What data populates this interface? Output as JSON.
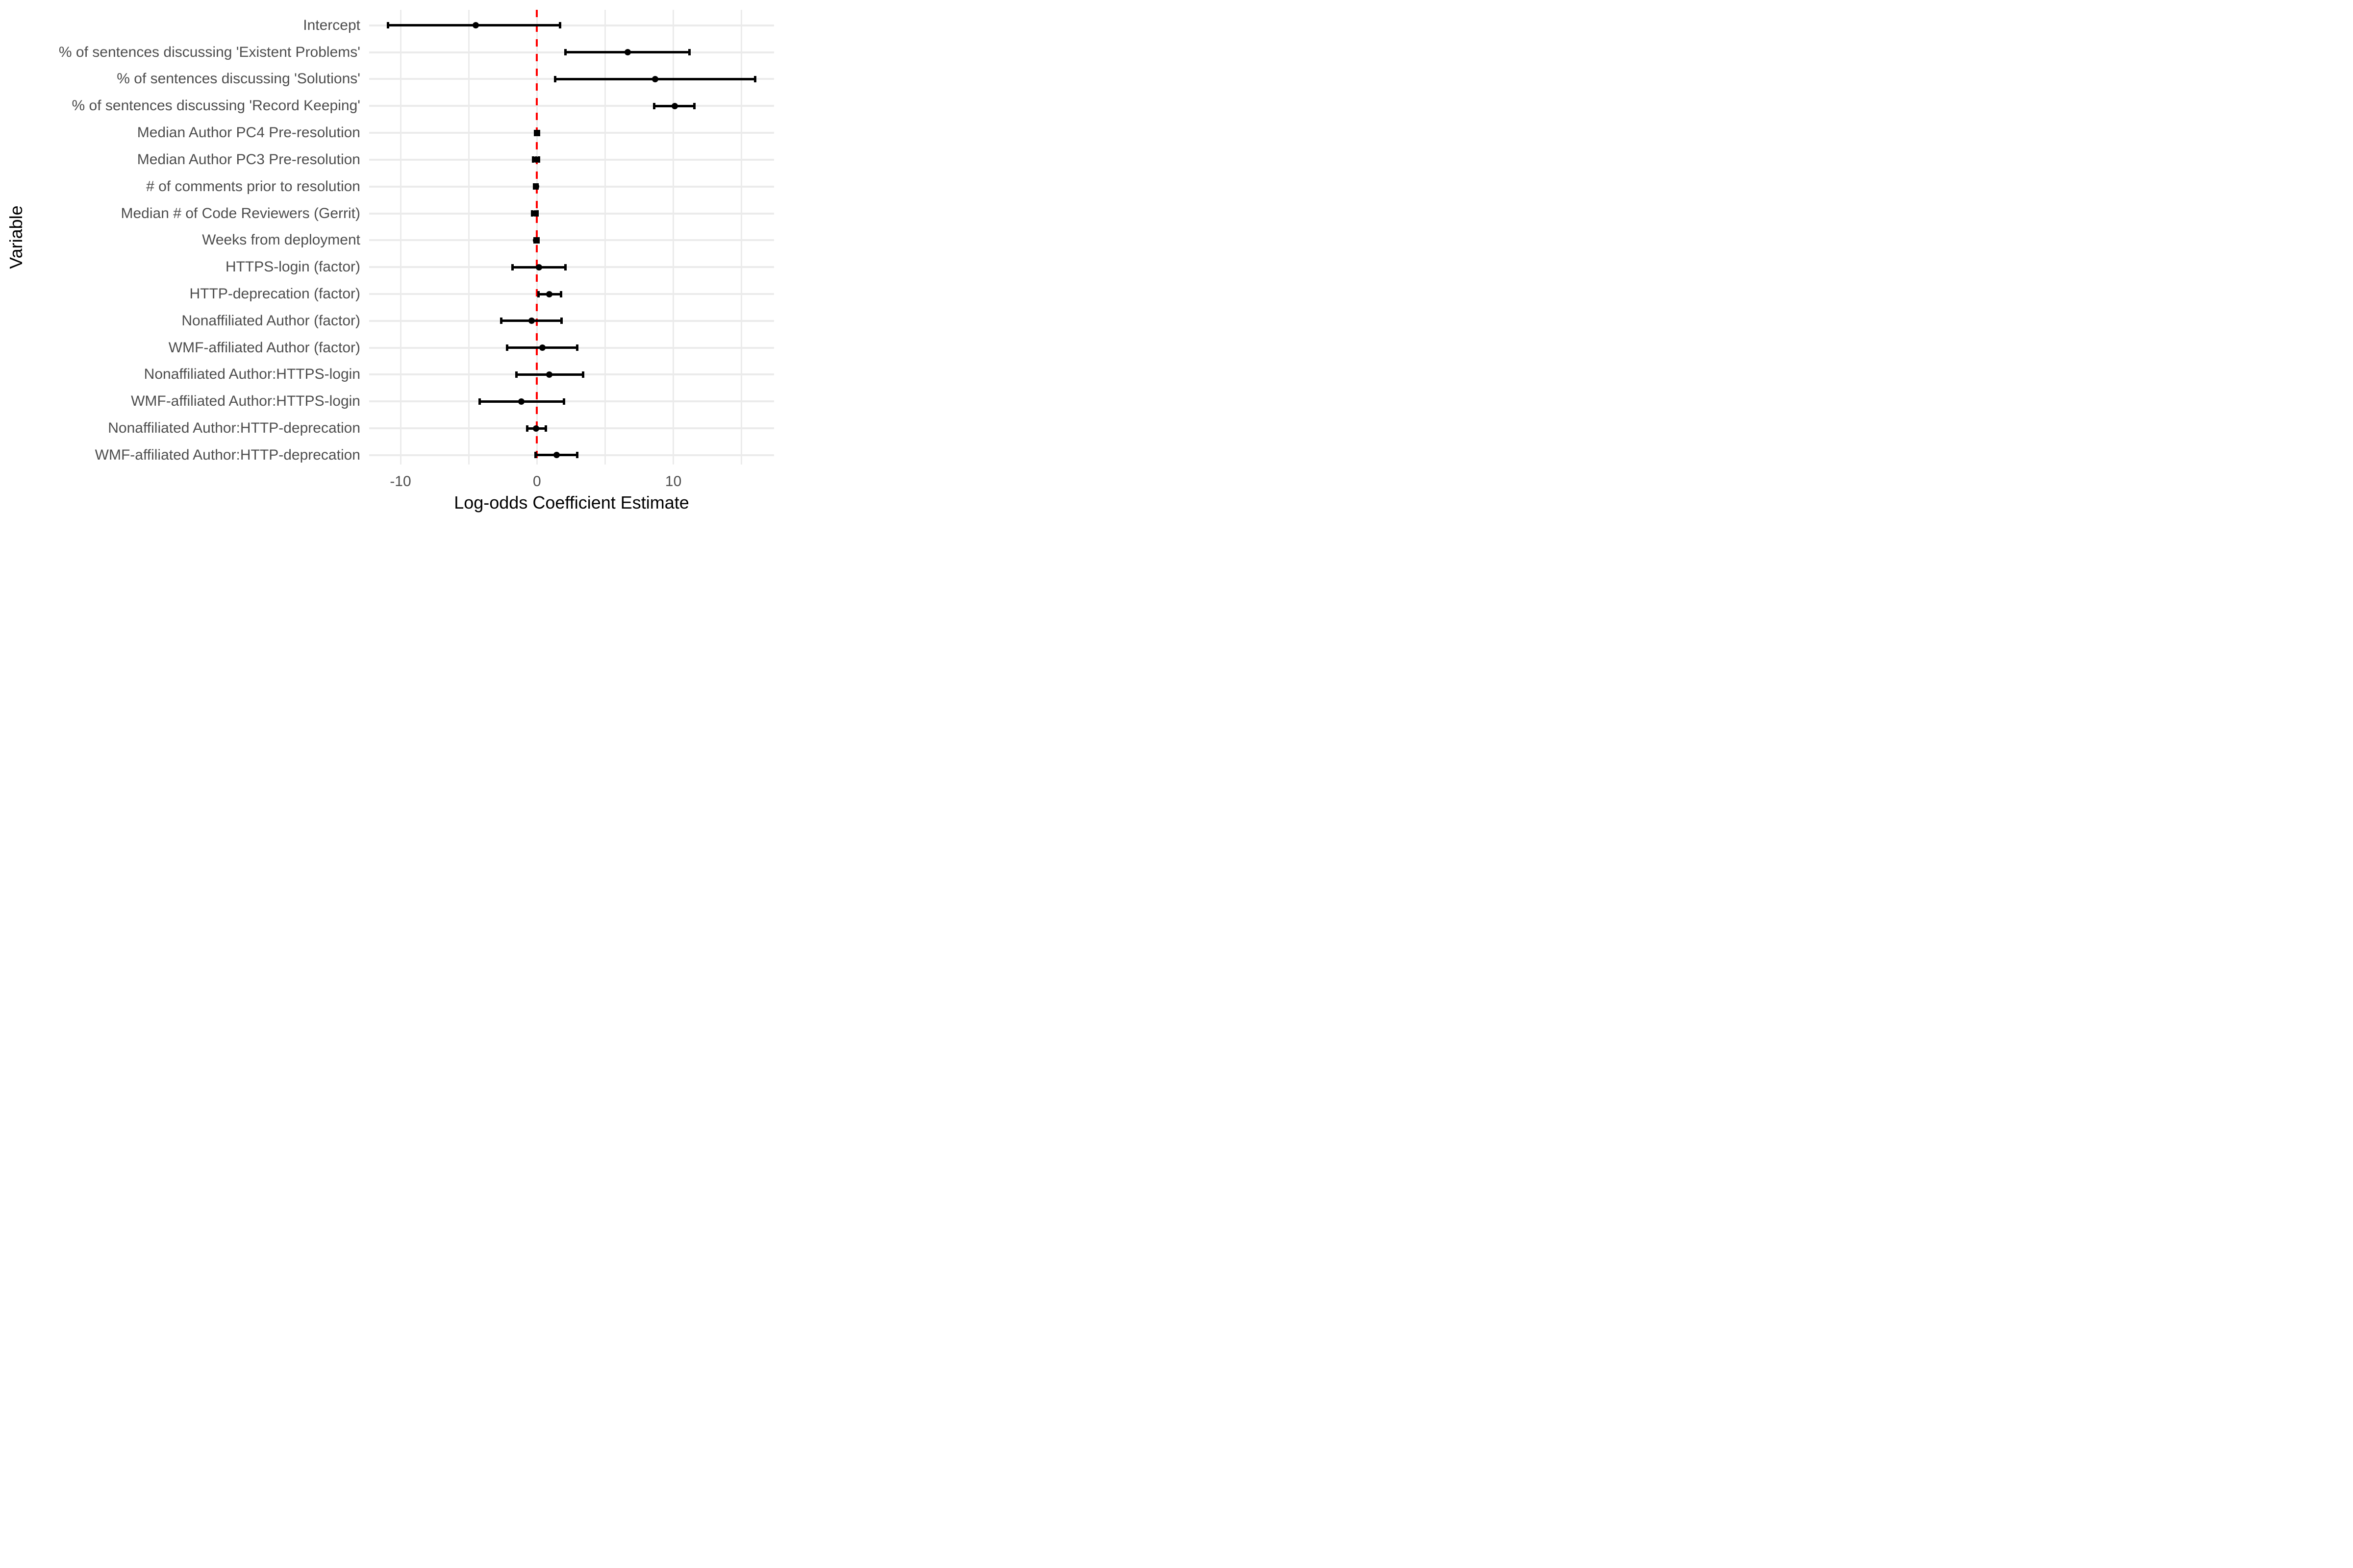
{
  "chart_data": {
    "type": "scatter",
    "subtype": "forest-plot-dot-and-whisker",
    "title": "",
    "xlabel": "Log-odds Coefficient Estimate",
    "ylabel": "Variable",
    "xlim": [
      -12.3,
      17.4
    ],
    "x_ticks": [
      -10,
      0,
      10
    ],
    "x_tick_labels": [
      "-10",
      "0",
      "10"
    ],
    "x_gridlines": [
      -10,
      -5,
      0,
      5,
      10,
      15
    ],
    "grid": true,
    "legend": "none",
    "reference_line": {
      "x": 0,
      "color": "#FF0000",
      "style": "dashed"
    },
    "rows": [
      {
        "label": "Intercept",
        "estimate": -4.5,
        "ci_low": -10.9,
        "ci_high": 1.7
      },
      {
        "label": "% of sentences discussing 'Existent Problems'",
        "estimate": 6.65,
        "ci_low": 2.1,
        "ci_high": 11.2
      },
      {
        "label": "% of sentences discussing 'Solutions'",
        "estimate": 8.65,
        "ci_low": 1.35,
        "ci_high": 16.0
      },
      {
        "label": "% of sentences discussing 'Record Keeping'",
        "estimate": 10.1,
        "ci_low": 8.6,
        "ci_high": 11.55
      },
      {
        "label": "Median Author PC4 Pre-resolution",
        "estimate": 0.0,
        "ci_low": -0.15,
        "ci_high": 0.15
      },
      {
        "label": "Median Author PC3 Pre-resolution",
        "estimate": -0.06,
        "ci_low": -0.28,
        "ci_high": 0.14
      },
      {
        "label": "# of comments prior to resolution",
        "estimate": -0.08,
        "ci_low": -0.2,
        "ci_high": 0.05
      },
      {
        "label": "Median # of Code Reviewers (Gerrit)",
        "estimate": -0.15,
        "ci_low": -0.34,
        "ci_high": 0.04
      },
      {
        "label": "Weeks from deployment",
        "estimate": -0.05,
        "ci_low": -0.18,
        "ci_high": 0.1
      },
      {
        "label": "HTTPS-login (factor)",
        "estimate": 0.15,
        "ci_low": -1.8,
        "ci_high": 2.1
      },
      {
        "label": "HTTP-deprecation (factor)",
        "estimate": 0.9,
        "ci_low": 0.1,
        "ci_high": 1.78
      },
      {
        "label": "Nonaffiliated Author (factor)",
        "estimate": -0.4,
        "ci_low": -2.6,
        "ci_high": 1.82
      },
      {
        "label": "WMF-affiliated Author (factor)",
        "estimate": 0.4,
        "ci_low": -2.2,
        "ci_high": 2.95
      },
      {
        "label": "Nonaffiliated Author:HTTPS-login",
        "estimate": 0.9,
        "ci_low": -1.5,
        "ci_high": 3.4
      },
      {
        "label": "WMF-affiliated Author:HTTPS-login",
        "estimate": -1.15,
        "ci_low": -4.2,
        "ci_high": 2.0
      },
      {
        "label": "Nonaffiliated Author:HTTP-deprecation",
        "estimate": -0.05,
        "ci_low": -0.7,
        "ci_high": 0.65
      },
      {
        "label": "WMF-affiliated Author:HTTP-deprecation",
        "estimate": 1.45,
        "ci_low": -0.1,
        "ci_high": 2.95
      }
    ]
  },
  "colors": {
    "background": "#FFFFFF",
    "gridline": "#EBEBEB",
    "point": "#000000",
    "whisker": "#000000",
    "axis_text": "#4D4D4D",
    "axis_title": "#000000",
    "reference_line": "#FF0000"
  }
}
